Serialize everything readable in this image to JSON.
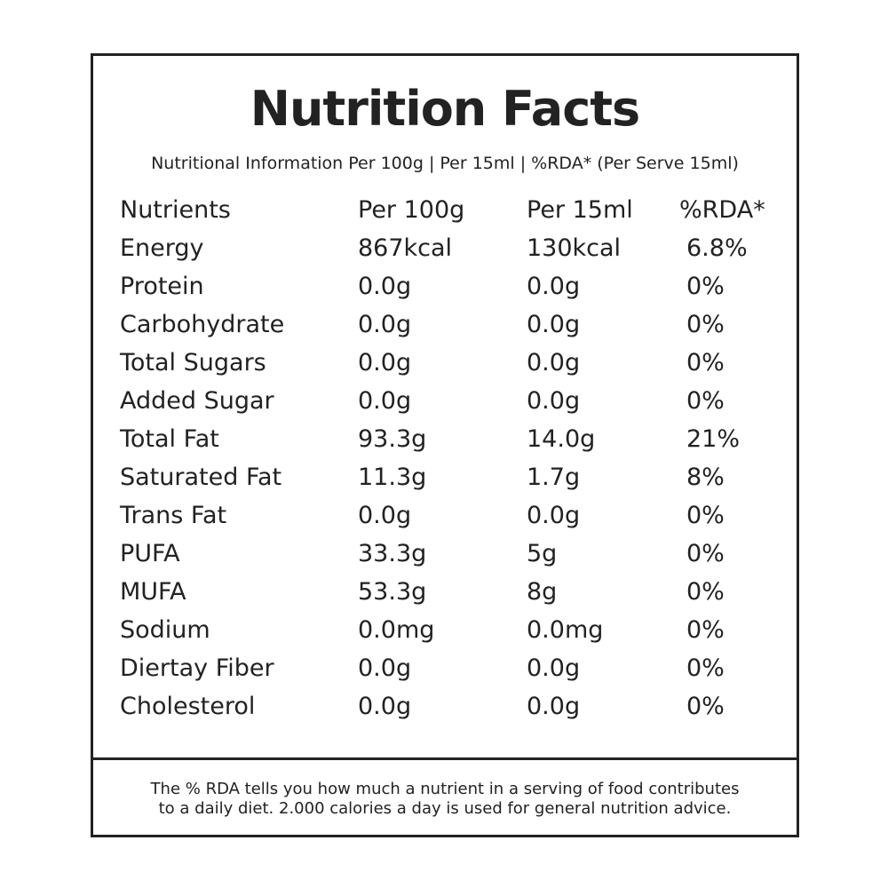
{
  "header": {
    "title": "Nutrition Facts",
    "subtitle": "Nutritional Information Per 100g | Per 15ml | %RDA* (Per Serve 15ml)"
  },
  "table": {
    "columns": [
      "Nutrients",
      "Per 100g",
      "Per 15ml",
      "%RDA*"
    ],
    "rows": [
      [
        "Energy",
        "867kcal",
        "130kcal",
        "6.8%"
      ],
      [
        "Protein",
        "0.0g",
        "0.0g",
        "0%"
      ],
      [
        "Carbohydrate",
        "0.0g",
        "0.0g",
        "0%"
      ],
      [
        "Total Sugars",
        "0.0g",
        "0.0g",
        "0%"
      ],
      [
        "Added Sugar",
        "0.0g",
        "0.0g",
        "0%"
      ],
      [
        "Total Fat",
        "93.3g",
        "14.0g",
        "21%"
      ],
      [
        "Saturated Fat",
        "11.3g",
        "1.7g",
        "8%"
      ],
      [
        "Trans Fat",
        "0.0g",
        "0.0g",
        "0%"
      ],
      [
        "PUFA",
        "33.3g",
        "5g",
        "0%"
      ],
      [
        "MUFA",
        "53.3g",
        "8g",
        "0%"
      ],
      [
        "Sodium",
        "0.0mg",
        "0.0mg",
        "0%"
      ],
      [
        "Diertay Fiber",
        "0.0g",
        "0.0g",
        "0%"
      ],
      [
        "Cholesterol",
        "0.0g",
        "0.0g",
        "0%"
      ]
    ]
  },
  "footer": {
    "lines": [
      "The % RDA tells you how much a nutrient in a serving of food contributes",
      "to a daily diet. 2.000 calories a day is used for general nutrition advice."
    ]
  }
}
